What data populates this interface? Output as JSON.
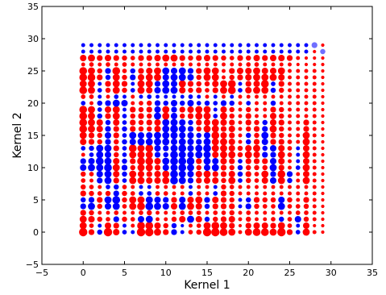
{
  "chart_data": {
    "type": "scatter",
    "title": "",
    "xlabel": "Kernel 1",
    "ylabel": "Kernel 2",
    "xlim": [
      -5,
      35
    ],
    "ylim": [
      -5,
      35
    ],
    "xticks": [
      -5,
      0,
      5,
      10,
      15,
      20,
      25,
      30,
      35
    ],
    "yticks": [
      -5,
      0,
      5,
      10,
      15,
      20,
      25,
      30,
      35
    ],
    "xtick_labels": [
      "−5",
      "0",
      "5",
      "10",
      "15",
      "20",
      "25",
      "30",
      "35"
    ],
    "ytick_labels": [
      "−5",
      "0",
      "5",
      "10",
      "15",
      "20",
      "25",
      "30",
      "35"
    ],
    "grid": false,
    "grid_range": {
      "x": [
        0,
        29
      ],
      "y": [
        0,
        29
      ]
    },
    "colors": {
      "positive": "#ff0000",
      "negative": "#0000ff",
      "faded": "#6f6fff"
    },
    "value_domain": [
      -1,
      1
    ],
    "value_note_free": true,
    "values": [
      [
        1,
        0.6,
        -0.5,
        1,
        0.7,
        -0.4,
        -0.3,
        1,
        1,
        0.8,
        0.6,
        -0.6,
        -0.3,
        0.4,
        0.5,
        1,
        1,
        0.9,
        0.8,
        0.3,
        0.8,
        0.9,
        0.9,
        0.8,
        1,
        0.6,
        -0.4,
        0.8,
        0.3,
        0.2
      ],
      [
        0.8,
        0.4,
        -0.3,
        0.7,
        0.6,
        -0.3,
        0.3,
        0.9,
        0.9,
        0.7,
        0.5,
        -0.5,
        -0.2,
        0.3,
        0.4,
        0.8,
        0.9,
        0.8,
        0.6,
        0.2,
        0.6,
        0.7,
        0.7,
        0.6,
        0.8,
        0.4,
        -0.3,
        0.7,
        0.2,
        0.2
      ],
      [
        0.8,
        0.7,
        0.5,
        0.4,
        -0.6,
        0.5,
        0.4,
        -0.7,
        -0.8,
        0.3,
        0.3,
        0.5,
        0.7,
        -0.8,
        0.7,
        -0.5,
        0.5,
        0.6,
        0.7,
        0.3,
        0.5,
        0.3,
        0.3,
        0.4,
        -0.5,
        0.4,
        -0.7,
        0.5,
        0.3,
        0.2
      ],
      [
        0.6,
        0.5,
        0.3,
        0.3,
        0.4,
        0.3,
        0.3,
        0.4,
        0.5,
        0.3,
        0.3,
        0.3,
        0.4,
        0.4,
        0.4,
        0.3,
        0.4,
        0.4,
        0.5,
        0.3,
        0.4,
        0.3,
        0.3,
        0.3,
        0.3,
        0.3,
        0.4,
        0.4,
        0.3,
        0.2
      ],
      [
        -0.6,
        -0.8,
        0.5,
        -0.7,
        -0.8,
        0.4,
        0.8,
        0.9,
        -0.9,
        -0.8,
        -0.7,
        0.7,
        -0.8,
        0.8,
        0.7,
        -0.5,
        0.6,
        0.6,
        0.6,
        -0.3,
        -0.6,
        0.5,
        0.4,
        0.4,
        -0.8,
        0.4,
        0.4,
        0.5,
        0.3,
        0.2
      ],
      [
        -0.5,
        -0.6,
        0.6,
        -0.8,
        -0.9,
        0.5,
        0.8,
        0.8,
        -0.8,
        -0.7,
        -0.6,
        0.6,
        -0.7,
        0.7,
        0.8,
        -0.6,
        0.7,
        0.6,
        0.5,
        -0.3,
        -0.5,
        0.6,
        0.5,
        0.5,
        -0.7,
        0.5,
        0.3,
        0.6,
        0.3,
        0.2
      ],
      [
        0.6,
        0.5,
        0.4,
        0.5,
        -0.6,
        0.5,
        0.4,
        -0.4,
        -0.4,
        0.4,
        0.4,
        0.3,
        0.3,
        -0.4,
        0.4,
        0.3,
        -0.4,
        0.6,
        0.5,
        0.3,
        0.3,
        0.3,
        0.3,
        0.3,
        0.3,
        0.3,
        0.3,
        0.3,
        0.3,
        0.2
      ],
      [
        0.5,
        0.4,
        0.3,
        -0.4,
        -0.5,
        0.4,
        0.3,
        -0.3,
        -0.3,
        0.3,
        0.3,
        0.3,
        0.3,
        -0.3,
        0.3,
        0.3,
        -0.3,
        0.5,
        0.4,
        0.3,
        0.3,
        0.3,
        0.3,
        0.3,
        0.3,
        0.3,
        0.3,
        0.3,
        0.3,
        0.2
      ],
      [
        0.4,
        0.3,
        -0.6,
        -0.8,
        0.6,
        -0.4,
        0.8,
        0.8,
        0.7,
        0.7,
        0.8,
        -0.9,
        -0.8,
        -0.6,
        0.6,
        0.7,
        0.7,
        0.5,
        0.8,
        -0.4,
        0.5,
        0.4,
        0.7,
        -0.7,
        0.8,
        -0.5,
        0.3,
        0.8,
        0.3,
        0.2
      ],
      [
        0.5,
        0.4,
        -0.7,
        -0.8,
        0.7,
        -0.5,
        0.8,
        0.7,
        0.6,
        0.7,
        0.8,
        -0.9,
        -0.8,
        -0.7,
        0.7,
        0.8,
        0.6,
        0.6,
        0.7,
        -0.5,
        0.6,
        0.4,
        0.8,
        -0.6,
        0.9,
        -0.6,
        0.3,
        0.7,
        0.3,
        0.2
      ],
      [
        -0.7,
        -0.8,
        -0.8,
        -0.9,
        0.8,
        -0.6,
        0.5,
        0.8,
        0.8,
        0.6,
        -0.7,
        -0.8,
        -0.9,
        -0.8,
        0.5,
        -0.7,
        -0.8,
        0.6,
        0.5,
        -0.5,
        0.5,
        0.5,
        0.5,
        -0.8,
        0.6,
        0.3,
        -0.4,
        0.8,
        0.3,
        0.2
      ],
      [
        -0.6,
        -0.7,
        -0.9,
        -0.8,
        0.7,
        -0.5,
        0.6,
        0.9,
        0.9,
        0.7,
        -0.8,
        -0.9,
        -0.9,
        -0.9,
        0.6,
        -0.8,
        -0.7,
        0.7,
        0.6,
        -0.4,
        0.6,
        0.6,
        0.6,
        -0.7,
        0.7,
        0.3,
        -0.3,
        0.7,
        0.3,
        0.2
      ],
      [
        0.3,
        -0.4,
        -0.8,
        -0.7,
        0.5,
        -0.4,
        0.8,
        0.8,
        0.8,
        -0.6,
        -0.5,
        -0.9,
        -0.8,
        -0.7,
        -0.8,
        -0.8,
        0.7,
        0.8,
        0.8,
        0.5,
        0.8,
        0.7,
        -0.6,
        -0.6,
        0.8,
        0.4,
        -0.3,
        0.8,
        0.3,
        0.2
      ],
      [
        -0.4,
        -0.5,
        -0.8,
        -0.8,
        0.6,
        -0.4,
        0.9,
        0.8,
        0.9,
        -0.7,
        -0.6,
        -0.8,
        -0.9,
        -0.7,
        -0.8,
        -0.9,
        0.8,
        0.8,
        0.7,
        0.5,
        0.7,
        0.8,
        -0.5,
        -0.7,
        0.7,
        0.4,
        -0.3,
        0.7,
        0.3,
        0.2
      ],
      [
        0.7,
        0.6,
        0.5,
        -0.6,
        0.5,
        -0.5,
        -0.7,
        -0.8,
        -0.8,
        -0.8,
        -0.8,
        -0.7,
        -0.8,
        -0.7,
        -0.6,
        -0.8,
        0.8,
        0.8,
        0.7,
        0.3,
        -0.5,
        0.6,
        -0.7,
        0.6,
        0.6,
        0.4,
        0.3,
        0.8,
        0.3,
        0.2
      ],
      [
        0.8,
        0.6,
        0.5,
        -0.7,
        0.6,
        -0.4,
        -0.8,
        -0.7,
        -0.7,
        -0.8,
        -0.8,
        -0.8,
        -0.7,
        -0.7,
        -0.5,
        -0.7,
        0.9,
        0.7,
        0.6,
        0.3,
        -0.5,
        0.5,
        -0.8,
        0.6,
        0.5,
        0.3,
        0.3,
        0.8,
        0.3,
        0.2
      ],
      [
        0.9,
        0.8,
        0.7,
        -0.6,
        0.6,
        -0.5,
        0.6,
        0.5,
        0.5,
        0.7,
        -0.8,
        -0.9,
        -0.8,
        -0.6,
        0.5,
        0.8,
        0.8,
        0.6,
        0.7,
        0.3,
        0.5,
        0.6,
        -0.6,
        0.8,
        0.5,
        0.3,
        0.3,
        0.6,
        0.3,
        0.2
      ],
      [
        0.9,
        0.8,
        0.7,
        -0.5,
        0.7,
        -0.4,
        0.6,
        0.5,
        0.6,
        0.7,
        -0.8,
        -0.8,
        -0.7,
        -0.5,
        0.6,
        0.7,
        0.8,
        0.7,
        0.6,
        0.3,
        0.6,
        0.5,
        -0.5,
        0.7,
        0.6,
        0.3,
        0.3,
        0.6,
        0.3,
        0.2
      ],
      [
        0.9,
        0.8,
        -0.5,
        0.6,
        0.8,
        -0.4,
        0.5,
        0.6,
        0.5,
        -0.8,
        0.8,
        -0.7,
        0.5,
        0.6,
        0.8,
        0.8,
        -0.4,
        0.8,
        0.5,
        0.3,
        0.6,
        0.3,
        0.3,
        0.7,
        0.5,
        0.3,
        0.3,
        0.3,
        0.3,
        0.2
      ],
      [
        0.9,
        0.8,
        -0.4,
        0.7,
        0.8,
        -0.3,
        0.6,
        0.5,
        0.6,
        -0.7,
        0.8,
        -0.6,
        0.6,
        0.7,
        0.8,
        0.8,
        -0.3,
        0.7,
        0.5,
        0.3,
        0.5,
        0.3,
        0.3,
        0.6,
        0.5,
        0.3,
        0.3,
        0.3,
        0.3,
        0.2
      ],
      [
        -0.4,
        0.3,
        -0.5,
        -0.6,
        -0.8,
        -0.7,
        0.3,
        0.4,
        0.5,
        -0.6,
        -0.5,
        -0.7,
        -0.5,
        -0.7,
        -0.4,
        -0.5,
        -0.4,
        -0.6,
        -0.5,
        0.3,
        -0.4,
        0.3,
        0.3,
        -0.5,
        0.3,
        0.3,
        0.3,
        0.3,
        0.3,
        0.2
      ],
      [
        0.4,
        0.4,
        -0.3,
        0.3,
        -0.4,
        -0.3,
        0.3,
        -0.3,
        -0.4,
        -0.3,
        -0.3,
        -0.3,
        -0.3,
        -0.4,
        -0.3,
        0.3,
        -0.3,
        0.3,
        -0.3,
        0.3,
        0.3,
        0.3,
        0.3,
        0.3,
        0.3,
        0.3,
        0.3,
        0.3,
        0.3,
        0.2
      ],
      [
        0.9,
        0.8,
        -0.4,
        0.5,
        0.8,
        0.5,
        -0.4,
        0.8,
        0.7,
        -0.7,
        -0.8,
        -0.8,
        0.7,
        0.5,
        0.6,
        0.4,
        0.6,
        0.8,
        0.9,
        -0.4,
        0.7,
        0.8,
        0.8,
        -0.5,
        0.5,
        0.3,
        0.3,
        0.3,
        0.3,
        0.2
      ],
      [
        0.8,
        0.8,
        -0.3,
        0.6,
        0.8,
        0.6,
        -0.3,
        0.8,
        0.8,
        -0.6,
        -0.8,
        -0.7,
        0.8,
        0.6,
        0.5,
        0.5,
        0.7,
        0.8,
        0.9,
        -0.3,
        0.6,
        0.7,
        0.9,
        -0.4,
        0.6,
        0.3,
        0.3,
        0.3,
        0.3,
        0.2
      ],
      [
        0.9,
        0.9,
        0.6,
        -0.5,
        0.8,
        0.5,
        -0.6,
        0.7,
        0.8,
        0.8,
        -0.7,
        -0.8,
        -0.8,
        -0.7,
        0.5,
        0.8,
        0.8,
        0.3,
        0.5,
        0.6,
        0.7,
        0.8,
        0.8,
        0.8,
        0.7,
        0.3,
        0.3,
        0.3,
        0.3,
        0.2
      ],
      [
        0.9,
        0.8,
        0.5,
        -0.6,
        0.9,
        0.4,
        -0.5,
        0.6,
        0.7,
        0.8,
        -0.8,
        -0.7,
        -0.8,
        -0.6,
        0.6,
        0.8,
        0.8,
        0.3,
        0.6,
        0.7,
        0.7,
        0.8,
        0.7,
        0.7,
        0.8,
        0.3,
        0.3,
        0.3,
        0.3,
        0.2
      ],
      [
        0.3,
        0.4,
        0.3,
        0.4,
        0.3,
        0.4,
        0.3,
        0.3,
        0.3,
        0.3,
        0.3,
        0.3,
        0.3,
        0.3,
        0.3,
        0.3,
        0.3,
        0.3,
        0.3,
        0.3,
        0.4,
        0.4,
        0.3,
        0.3,
        0.3,
        0.3,
        0.2,
        0.2,
        0.2,
        0.2
      ],
      [
        0.7,
        0.8,
        0.6,
        0.7,
        0.6,
        0.5,
        0.4,
        0.6,
        0.6,
        0.7,
        0.8,
        0.8,
        0.6,
        0.5,
        0.6,
        0.7,
        0.6,
        0.5,
        0.4,
        0.6,
        0.5,
        0.7,
        0.6,
        0.7,
        0.7,
        0.6,
        0.3,
        0.2,
        0.2,
        0.2
      ],
      [
        -0.3,
        -0.3,
        -0.3,
        -0.3,
        -0.3,
        -0.3,
        -0.3,
        -0.3,
        -0.3,
        -0.3,
        -0.3,
        -0.3,
        -0.3,
        -0.3,
        -0.3,
        -0.3,
        -0.3,
        -0.3,
        -0.3,
        -0.3,
        -0.3,
        -0.3,
        -0.3,
        -0.3,
        -0.3,
        -0.3,
        -0.3,
        -0.3,
        0.2,
        0.2
      ],
      [
        -0.3,
        -0.3,
        -0.3,
        -0.3,
        -0.3,
        -0.3,
        -0.3,
        -0.3,
        -0.3,
        -0.3,
        -0.3,
        -0.3,
        -0.3,
        -0.3,
        -0.3,
        -0.3,
        -0.3,
        -0.3,
        -0.3,
        -0.3,
        -0.3,
        -0.3,
        -0.3,
        -0.3,
        -0.3,
        -0.3,
        -0.3,
        -0.3,
        -0.3,
        0.2
      ]
    ],
    "extra_points": [
      {
        "x": 28,
        "y": 29,
        "value": -0.6,
        "color": "#6f6fff"
      },
      {
        "x": 29,
        "y": 28,
        "value": -0.5,
        "color": "#6f6fff"
      }
    ]
  }
}
